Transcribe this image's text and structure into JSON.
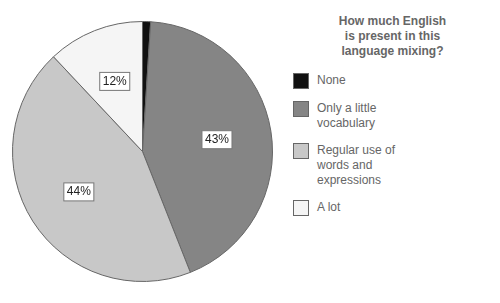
{
  "chart_data": {
    "type": "pie",
    "legend_title": "How much English\nis present in this\nlanguage mixing?",
    "categories": [
      "None",
      "Only a little\nvocabulary",
      "Regular use of\nwords and\nexpressions",
      "A lot"
    ],
    "values": [
      1,
      43,
      44,
      12
    ],
    "value_labels": [
      null,
      "43%",
      "44%",
      "12%"
    ],
    "data_labels": true,
    "colors": [
      "#111111",
      "#858585",
      "#c8c8c8",
      "#f5f5f5"
    ],
    "legend": "right"
  }
}
